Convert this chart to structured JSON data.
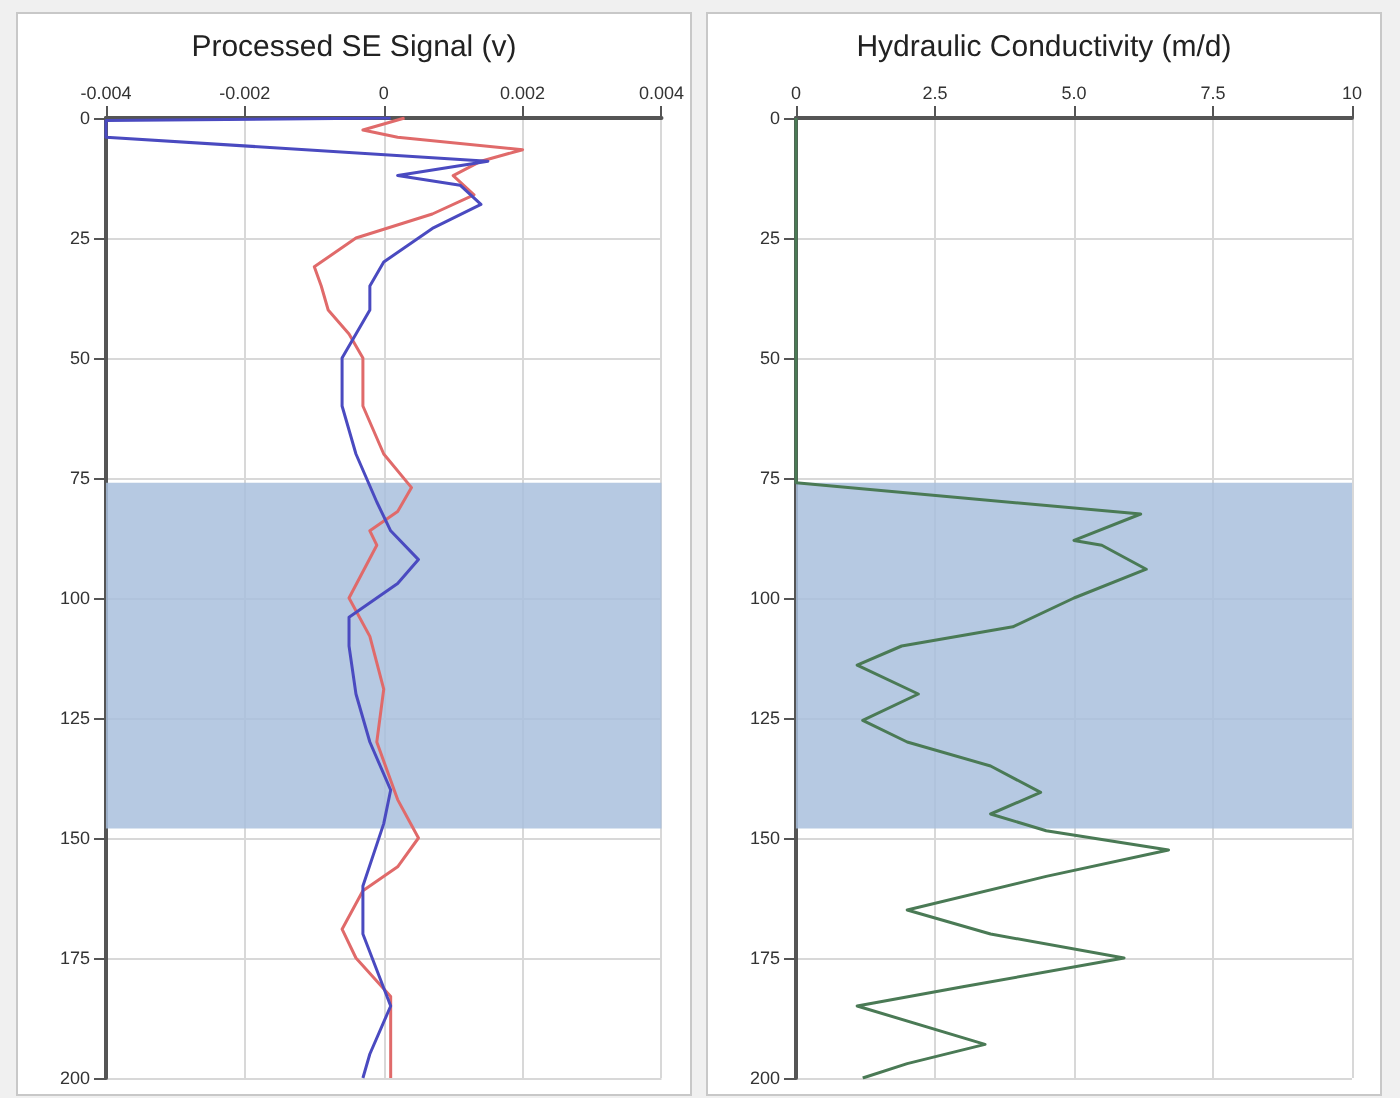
{
  "chart_data": [
    {
      "type": "line",
      "title": "Processed SE Signal (v)",
      "xlim": [
        -0.004,
        0.004
      ],
      "xticks": [
        -0.004,
        -0.002,
        0,
        0.002,
        0.004
      ],
      "ylim": [
        200,
        0
      ],
      "yticks": [
        0,
        25,
        50,
        75,
        100,
        125,
        150,
        175,
        200
      ],
      "grid": true,
      "bands": [
        {
          "axis": "y",
          "from": 76,
          "to": 148,
          "color": "#a9c0dd"
        }
      ],
      "series": [
        {
          "color": "#e06a6a",
          "x": [
            0.0003,
            -0.0003,
            0.0002,
            0.002,
            0.0014,
            0.001,
            0.0013,
            0.0007,
            -0.0004,
            -0.001,
            -0.0009,
            -0.0008,
            -0.0005,
            -0.0003,
            -0.0003,
            0,
            0.0004,
            0.0002,
            -0.0002,
            -0.0001,
            -0.0005,
            -0.0002,
            0,
            -0.0001,
            0.0002,
            0.0005,
            0.0002,
            -0.0003,
            -0.0006,
            -0.0004,
            0.0001,
            0.0001,
            0.0001
          ],
          "values": [
            0,
            2.5,
            4,
            6.6,
            9,
            12,
            16,
            20,
            25,
            31,
            35,
            40,
            45,
            50,
            60,
            70,
            77,
            82,
            86,
            89,
            100,
            108,
            119,
            130,
            142,
            150,
            156,
            161,
            169,
            175,
            183,
            190,
            200
          ]
        },
        {
          "color": "#4a4ac0",
          "x": [
            0.0001,
            -0.004,
            -0.004,
            0.0015,
            0.0002,
            0.0011,
            0.0014,
            0.0007,
            0,
            -0.0002,
            -0.0002,
            -0.0006,
            -0.0006,
            -0.0004,
            -0.0001,
            0.0001,
            0.0005,
            0.0002,
            -0.0005,
            -0.0005,
            -0.0004,
            -0.0002,
            0.0001,
            0,
            -0.0003,
            -0.0003,
            0.0001,
            -0.0002,
            -0.0003
          ],
          "values": [
            0,
            0.5,
            4,
            9,
            12,
            14,
            18,
            23,
            30,
            35,
            40,
            50,
            60,
            70,
            80,
            86,
            92,
            97,
            104,
            110,
            120,
            130,
            140,
            147,
            160,
            170,
            185,
            195,
            200
          ]
        }
      ]
    },
    {
      "type": "line",
      "title": "Hydraulic Conductivity (m/d)",
      "xlim": [
        0,
        10
      ],
      "xticks": [
        0,
        {
          "value": 2.5,
          "label": "2.5"
        },
        {
          "value": 5,
          "label": "5.0"
        },
        {
          "value": 7.5,
          "label": "7.5"
        },
        10
      ],
      "ylim": [
        200,
        0
      ],
      "yticks": [
        0,
        25,
        50,
        75,
        100,
        125,
        150,
        175,
        200
      ],
      "grid": true,
      "bands": [
        {
          "axis": "y",
          "from": 76,
          "to": 148,
          "color": "#a9c0dd"
        }
      ],
      "series": [
        {
          "color": "#4a7a55",
          "x": [
            0,
            0,
            6.2,
            5.0,
            5.5,
            6.3,
            5.0,
            3.9,
            1.9,
            1.1,
            2.2,
            1.2,
            2.0,
            3.5,
            4.4,
            3.5,
            4.5,
            6.7,
            4.5,
            2.0,
            3.5,
            5.9,
            3.0,
            1.1,
            3.4,
            2.0,
            1.2
          ],
          "values": [
            0,
            76,
            82.5,
            88,
            89,
            94,
            100,
            106,
            110,
            114,
            120,
            125.5,
            130,
            135,
            140.5,
            145,
            148.5,
            152.5,
            158,
            165,
            170,
            175,
            181,
            185,
            193,
            197,
            200
          ]
        }
      ]
    }
  ]
}
